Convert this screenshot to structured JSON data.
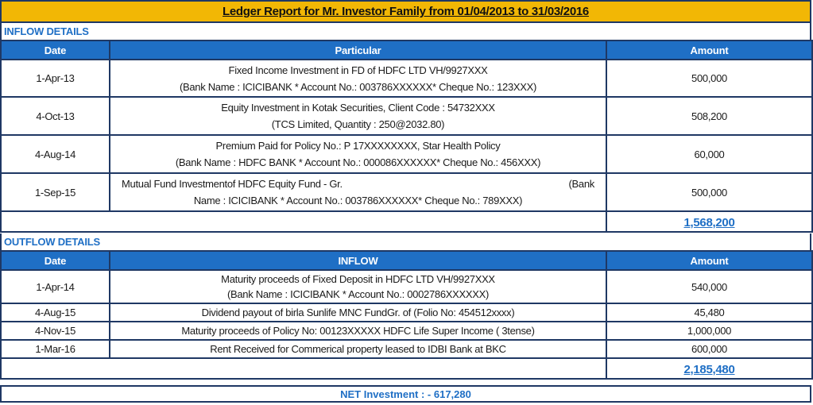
{
  "report_title": "Ledger Report for Mr. Investor Family from 01/04/2013 to 31/03/2016",
  "inflow": {
    "section_label": "INFLOW DETAILS",
    "headers": {
      "date": "Date",
      "particular": "Particular",
      "amount": "Amount"
    },
    "rows": [
      {
        "date": "1-Apr-13",
        "line1": "Fixed Income Investment in FD of HDFC LTD VH/9927XXX",
        "line2": "(Bank Name : ICICIBANK * Account No.: 003786XXXXXX* Cheque No.: 123XXX)",
        "amount": "500,000"
      },
      {
        "date": "4-Oct-13",
        "line1": "Equity Investment in Kotak Securities, Client Code : 54732XXX",
        "line2": "(TCS Limited, Quantity : 250@2032.80)",
        "amount": "508,200"
      },
      {
        "date": "4-Aug-14",
        "line1": "Premium Paid for Policy No.: P 17XXXXXXXX, Star Health Policy",
        "line2": "(Bank Name : HDFC BANK * Account No.: 000086XXXXXX* Cheque No.: 456XXX)",
        "amount": "60,000"
      },
      {
        "date": "1-Sep-15",
        "line1a": "Mutual Fund Investmentof HDFC Equity Fund - Gr.",
        "line1b": "(Bank",
        "line2": "Name : ICICIBANK * Account No.: 003786XXXXXX* Cheque No.: 789XXX)",
        "amount": "500,000"
      }
    ],
    "total": "1,568,200"
  },
  "outflow": {
    "section_label": "OUTFLOW DETAILS",
    "headers": {
      "date": "Date",
      "particular": "INFLOW",
      "amount": "Amount"
    },
    "rows": [
      {
        "date": "1-Apr-14",
        "line1": "Maturity proceeds of Fixed Deposit in HDFC LTD VH/9927XXX",
        "line2": "(Bank Name : ICICIBANK * Account No.: 0002786XXXXXX)",
        "amount": "540,000"
      },
      {
        "date": "4-Aug-15",
        "line1": "Dividend payout of birla Sunlife MNC FundGr. of (Folio No: 454512xxxx)",
        "amount": "45,480"
      },
      {
        "date": "4-Nov-15",
        "line1": "Maturity proceeds of Policy No: 00123XXXXX HDFC Life Super Income ( 3tense)",
        "amount": "1,000,000"
      },
      {
        "date": "1-Mar-16",
        "line1": "Rent Received for Commerical property leased to IDBI Bank at BKC",
        "amount": "600,000"
      }
    ],
    "total": "2,185,480"
  },
  "net_investment": "NET Investment : - 617,280",
  "colors": {
    "header_blue": "#1f6fc5",
    "border_navy": "#1f3864",
    "title_gold": "#f2b705"
  }
}
